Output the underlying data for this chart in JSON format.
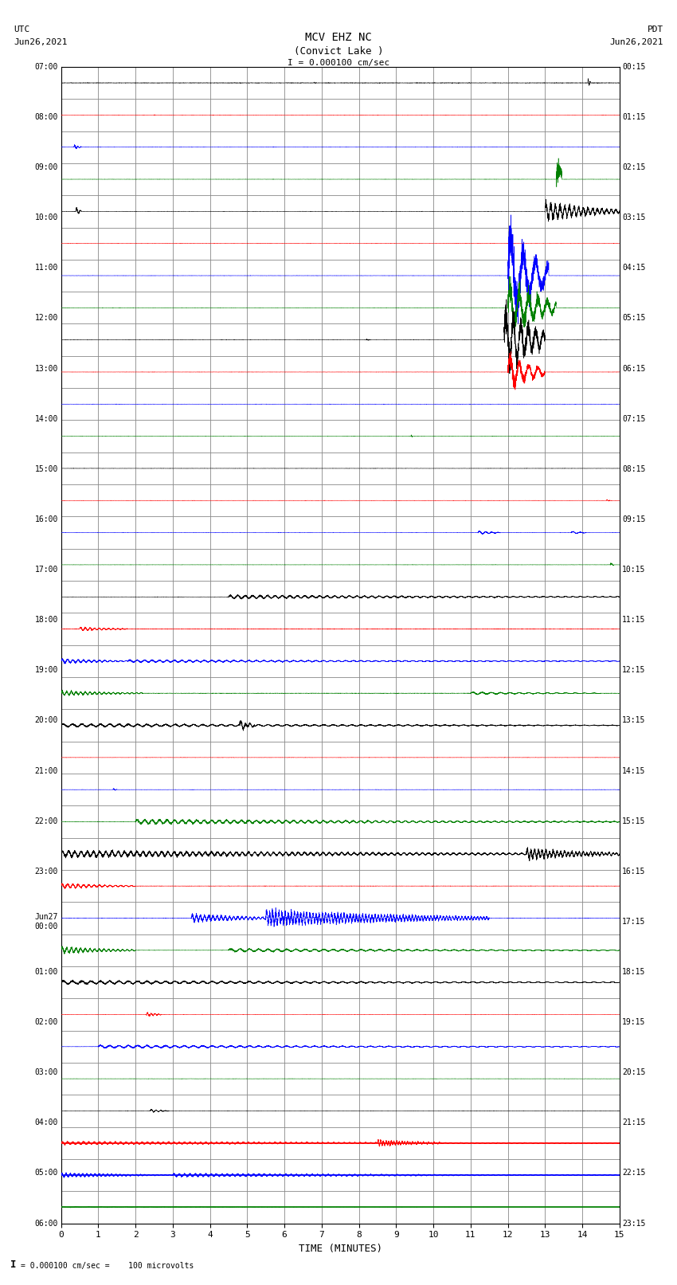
{
  "title_line1": "MCV EHZ NC",
  "title_line2": "(Convict Lake )",
  "title_scale": "I = 0.000100 cm/sec",
  "label_utc": "UTC",
  "label_pdt": "PDT",
  "label_date_left": "Jun26,2021",
  "label_date_right": "Jun26,2021",
  "xlabel": "TIME (MINUTES)",
  "footer_note": "= 0.000100 cm/sec =    100 microvolts",
  "xlim": [
    0,
    15
  ],
  "xticks": [
    0,
    1,
    2,
    3,
    4,
    5,
    6,
    7,
    8,
    9,
    10,
    11,
    12,
    13,
    14,
    15
  ],
  "num_rows": 36,
  "background_color": "#ffffff",
  "grid_color": "#888888",
  "color_cycle": [
    "black",
    "red",
    "blue",
    "green"
  ],
  "left_times": [
    "07:00",
    "08:00",
    "09:00",
    "10:00",
    "11:00",
    "12:00",
    "13:00",
    "14:00",
    "15:00",
    "16:00",
    "17:00",
    "18:00",
    "19:00",
    "20:00",
    "21:00",
    "22:00",
    "23:00",
    "Jun27\n00:00",
    "01:00",
    "02:00",
    "03:00",
    "04:00",
    "05:00",
    "06:00"
  ],
  "right_times": [
    "00:15",
    "01:15",
    "02:15",
    "03:15",
    "04:15",
    "05:15",
    "06:15",
    "07:15",
    "08:15",
    "09:15",
    "10:15",
    "11:15",
    "12:15",
    "13:15",
    "14:15",
    "15:15",
    "16:15",
    "17:15",
    "18:15",
    "19:15",
    "20:15",
    "21:15",
    "22:15",
    "23:15"
  ],
  "figsize": [
    8.5,
    16.13
  ],
  "dpi": 100
}
